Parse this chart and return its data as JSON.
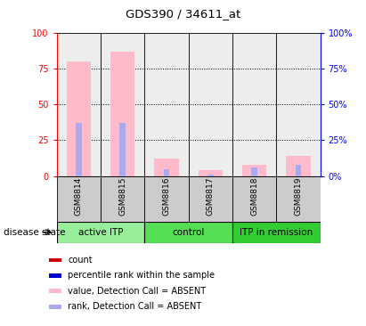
{
  "title": "GDS390 / 34611_at",
  "samples": [
    "GSM8814",
    "GSM8815",
    "GSM8816",
    "GSM8817",
    "GSM8818",
    "GSM8819"
  ],
  "pink_values": [
    80,
    87,
    12,
    4,
    8,
    14
  ],
  "blue_rank_values": [
    37,
    37,
    5,
    1,
    6,
    8
  ],
  "groups": [
    {
      "label": "active ITP",
      "start": 0,
      "end": 2,
      "color": "#99ee99"
    },
    {
      "label": "control",
      "start": 2,
      "end": 4,
      "color": "#55dd55"
    },
    {
      "label": "ITP in remission",
      "start": 4,
      "end": 6,
      "color": "#33cc33"
    }
  ],
  "ylim": [
    0,
    100
  ],
  "yticks": [
    0,
    25,
    50,
    75,
    100
  ],
  "pink_color": "#ffbbcc",
  "blue_color": "#aaaaee",
  "red_color": "#cc0000",
  "dark_blue_color": "#0000cc",
  "legend_items": [
    {
      "color": "#cc0000",
      "label": "count"
    },
    {
      "color": "#0000cc",
      "label": "percentile rank within the sample"
    },
    {
      "color": "#ffbbcc",
      "label": "value, Detection Call = ABSENT"
    },
    {
      "color": "#aaaaee",
      "label": "rank, Detection Call = ABSENT"
    }
  ],
  "bg_gray": "#cccccc",
  "chart_bg": "#ffffff"
}
